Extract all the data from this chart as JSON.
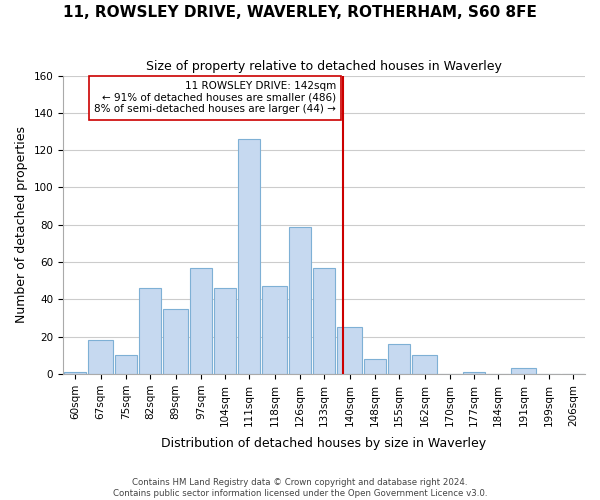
{
  "title": "11, ROWSLEY DRIVE, WAVERLEY, ROTHERHAM, S60 8FE",
  "subtitle": "Size of property relative to detached houses in Waverley",
  "xlabel": "Distribution of detached houses by size in Waverley",
  "ylabel": "Number of detached properties",
  "bar_labels": [
    "60sqm",
    "67sqm",
    "75sqm",
    "82sqm",
    "89sqm",
    "97sqm",
    "104sqm",
    "111sqm",
    "118sqm",
    "126sqm",
    "133sqm",
    "140sqm",
    "148sqm",
    "155sqm",
    "162sqm",
    "170sqm",
    "177sqm",
    "184sqm",
    "191sqm",
    "199sqm",
    "206sqm"
  ],
  "bar_edges": [
    60,
    67,
    75,
    82,
    89,
    97,
    104,
    111,
    118,
    126,
    133,
    140,
    148,
    155,
    162,
    170,
    177,
    184,
    191,
    199,
    206,
    213
  ],
  "bar_values": [
    1,
    18,
    10,
    46,
    35,
    57,
    46,
    126,
    47,
    79,
    57,
    25,
    8,
    16,
    10,
    0,
    1,
    0,
    3,
    0,
    0
  ],
  "bar_color": "#c6d9f0",
  "bar_edgecolor": "#7eb0d5",
  "vline_x": 142,
  "vline_color": "#cc0000",
  "annotation_text": "11 ROWSLEY DRIVE: 142sqm\n← 91% of detached houses are smaller (486)\n8% of semi-detached houses are larger (44) →",
  "annotation_box_edgecolor": "#cc0000",
  "ylim": [
    0,
    160
  ],
  "yticks": [
    0,
    20,
    40,
    60,
    80,
    100,
    120,
    140,
    160
  ],
  "footnote": "Contains HM Land Registry data © Crown copyright and database right 2024.\nContains public sector information licensed under the Open Government Licence v3.0.",
  "bg_color": "#ffffff",
  "grid_color": "#cccccc"
}
